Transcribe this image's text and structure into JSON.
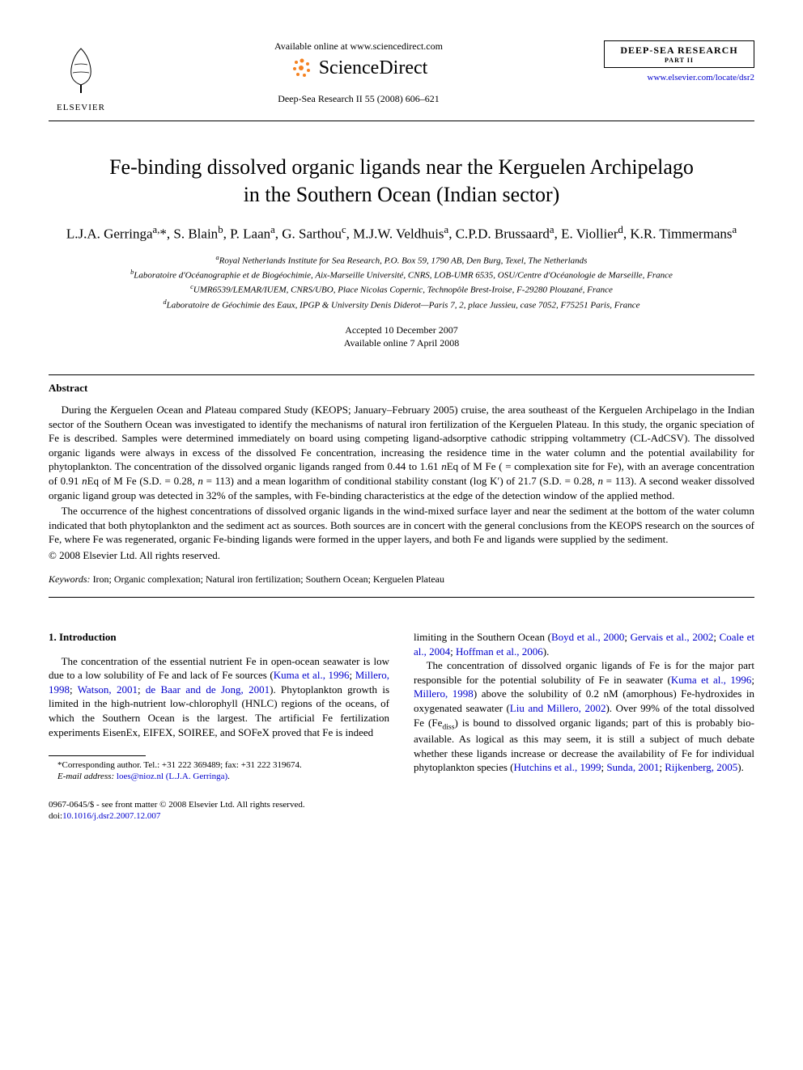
{
  "header": {
    "elsevier_label": "ELSEVIER",
    "available_online": "Available online at www.sciencedirect.com",
    "sciencedirect": "ScienceDirect",
    "journal_ref": "Deep-Sea Research II 55 (2008) 606–621",
    "journal_name": "DEEP-SEA RESEARCH",
    "journal_part": "PART II",
    "journal_link": "www.elsevier.com/locate/dsr2"
  },
  "title_line1": "Fe-binding dissolved organic ligands near the Kerguelen Archipelago",
  "title_line2": "in the Southern Ocean (Indian sector)",
  "authors_html": "L.J.A. Gerringa<sup>a,</sup>*, S. Blain<sup>b</sup>, P. Laan<sup>a</sup>, G. Sarthou<sup>c</sup>, M.J.W. Veldhuis<sup>a</sup>, C.P.D. Brussaard<sup>a</sup>, E. Viollier<sup>d</sup>, K.R. Timmermans<sup>a</sup>",
  "affiliations": {
    "a": "Royal Netherlands Institute for Sea Research, P.O. Box 59, 1790 AB, Den Burg, Texel, The Netherlands",
    "b": "Laboratoire d'Océanographie et de Biogéochimie, Aix-Marseille Université, CNRS, LOB-UMR 6535, OSU/Centre d'Océanologie de Marseille, France",
    "c": "UMR6539/LEMAR/IUEM, CNRS/UBO, Place Nicolas Copernic, Technopôle Brest-Iroise, F-29280 Plouzané, France",
    "d": "Laboratoire de Géochimie des Eaux, IPGP & University Denis Diderot—Paris 7, 2, place Jussieu, case 7052, F75251 Paris, France"
  },
  "dates": {
    "accepted": "Accepted 10 December 2007",
    "online": "Available online 7 April 2008"
  },
  "abstract_heading": "Abstract",
  "abstract_p1": "During the Kerguelen Ocean and Plateau compared Study (KEOPS; January–February 2005) cruise, the area southeast of the Kerguelen Archipelago in the Indian sector of the Southern Ocean was investigated to identify the mechanisms of natural iron fertilization of the Kerguelen Plateau. In this study, the organic speciation of Fe is described. Samples were determined immediately on board using competing ligand-adsorptive cathodic stripping voltammetry (CL-AdCSV). The dissolved organic ligands were always in excess of the dissolved Fe concentration, increasing the residence time in the water column and the potential availability for phytoplankton. The concentration of the dissolved organic ligands ranged from 0.44 to 1.61 nEq of M Fe ( = complexation site for Fe), with an average concentration of 0.91 nEq of M Fe (S.D. = 0.28, n = 113) and a mean logarithm of conditional stability constant (log K′) of 21.7 (S.D. = 0.28, n = 113). A second weaker dissolved organic ligand group was detected in 32% of the samples, with Fe-binding characteristics at the edge of the detection window of the applied method.",
  "abstract_p2": "The occurrence of the highest concentrations of dissolved organic ligands in the wind-mixed surface layer and near the sediment at the bottom of the water column indicated that both phytoplankton and the sediment act as sources. Both sources are in concert with the general conclusions from the KEOPS research on the sources of Fe, where Fe was regenerated, organic Fe-binding ligands were formed in the upper layers, and both Fe and ligands were supplied by the sediment.",
  "copyright": "© 2008 Elsevier Ltd. All rights reserved.",
  "keywords_label": "Keywords:",
  "keywords": " Iron; Organic complexation; Natural iron fertilization; Southern Ocean; Kerguelen Plateau",
  "section1_heading": "1. Introduction",
  "col_left_p1_a": "The concentration of the essential nutrient Fe in open-ocean seawater is low due to a low solubility of Fe and lack of Fe sources (",
  "col_left_ref1": "Kuma et al., 1996",
  "col_left_sep1": "; ",
  "col_left_ref2": "Millero, 1998",
  "col_left_sep2": "; ",
  "col_left_ref3": "Watson, 2001",
  "col_left_sep3": "; ",
  "col_left_ref4": "de Baar and de Jong, 2001",
  "col_left_p1_b": "). Phytoplankton growth is limited in the high-nutrient low-chlorophyll (HNLC) regions of the oceans, of which the Southern Ocean is the largest. The artificial Fe fertilization experiments EisenEx, EIFEX, SOIREE, and SOFeX proved that Fe is indeed",
  "col_right_p1_a": "limiting in the Southern Ocean (",
  "col_right_ref1": "Boyd et al., 2000",
  "col_right_sep1": "; ",
  "col_right_ref2": "Gervais et al., 2002",
  "col_right_sep2": "; ",
  "col_right_ref3": "Coale et al., 2004",
  "col_right_sep3": "; ",
  "col_right_ref4": "Hoffman et al., 2006",
  "col_right_p1_b": ").",
  "col_right_p2_a": "The concentration of dissolved organic ligands of Fe is for the major part responsible for the potential solubility of Fe in seawater (",
  "col_right_ref5": "Kuma et al., 1996",
  "col_right_sep5": "; ",
  "col_right_ref6": "Millero, 1998",
  "col_right_p2_b": ") above the solubility of 0.2 nM (amorphous) Fe-hydroxides in oxygenated seawater (",
  "col_right_ref7": "Liu and Millero, 2002",
  "col_right_p2_c": "). Over 99% of the total dissolved Fe (Fe",
  "col_right_sub": "diss",
  "col_right_p2_d": ") is bound to dissolved organic ligands; part of this is probably bio-available. As logical as this may seem, it is still a subject of much debate whether these ligands increase or decrease the availability of Fe for individual phytoplankton species (",
  "col_right_ref8": "Hutchins et al., 1999",
  "col_right_sep8": "; ",
  "col_right_ref9": "Sunda, 2001",
  "col_right_sep9": "; ",
  "col_right_ref10": "Rijkenberg, 2005",
  "col_right_p2_e": ").",
  "footnote_corr": "*Corresponding author. Tel.: +31 222 369489; fax: +31 222 319674.",
  "footnote_email_label": "E-mail address: ",
  "footnote_email": "loes@nioz.nl (L.J.A. Gerringa)",
  "footnote_email_dot": ".",
  "footer_line1": "0967-0645/$ - see front matter © 2008 Elsevier Ltd. All rights reserved.",
  "footer_doi_label": "doi:",
  "footer_doi": "10.1016/j.dsr2.2007.12.007",
  "colors": {
    "link": "#0000cc",
    "text": "#000000",
    "background": "#ffffff",
    "sd_orange": "#f58220"
  }
}
